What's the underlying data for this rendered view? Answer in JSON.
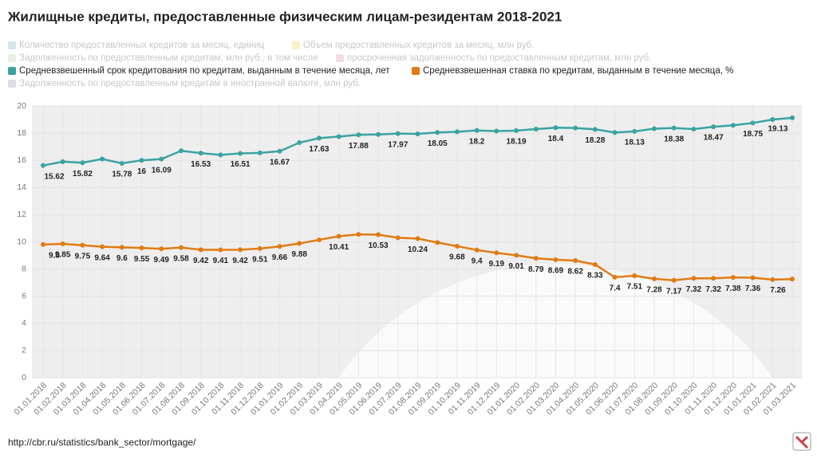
{
  "chart_data": {
    "type": "line",
    "title": "Жилищные кредиты, предоставленные физическим лицам-резидентам 2018-2021",
    "legend_hidden": [
      {
        "name": "Количество предоставленных кредитов за месяц, единиц",
        "color": "#d3e6ea"
      },
      {
        "name": "Объем предоставленных кредитов за месяц, млн руб.",
        "color": "#fbf1c9"
      },
      {
        "name": "Задолженность по предоставленным кредитам, млн руб., в том числе",
        "color": "#e7efe2"
      },
      {
        "name": "просроченная задолженность по предоставленным кредитам, млн руб.",
        "color": "#f2dde3"
      },
      {
        "name": "Задолженность по предоставленным кредитам в иностранной валюте, млн руб.",
        "color": "#dcdde6"
      }
    ],
    "x": [
      "01.01.2018",
      "01.02.2018",
      "01.03.2018",
      "01.04.2018",
      "01.05.2018",
      "01.06.2018",
      "01.07.2018",
      "01.08.2018",
      "01.09.2018",
      "01.10.2018",
      "01.11.2018",
      "01.12.2018",
      "01.01.2019",
      "01.02.2019",
      "01.03.2019",
      "01.04.2019",
      "01.05.2019",
      "01.06.2019",
      "01.07.2019",
      "01.08.2019",
      "01.09.2019",
      "01.10.2019",
      "01.11.2019",
      "01.12.2019",
      "01.01.2020",
      "01.02.2020",
      "01.03.2020",
      "01.04.2020",
      "01.05.2020",
      "01.06.2020",
      "01.07.2020",
      "01.08.2020",
      "01.09.2020",
      "01.10.2020",
      "01.11.2020",
      "01.12.2020",
      "01.01.2021",
      "01.02.2021",
      "01.03.2021"
    ],
    "series": [
      {
        "name": "Средневзвешенный срок кредитования по кредитам, выданным в течение месяца, лет",
        "color": "#3aa3a0",
        "values": [
          15.62,
          15.9,
          15.82,
          16.1,
          15.78,
          16,
          16.09,
          16.7,
          16.53,
          16.4,
          16.51,
          16.55,
          16.67,
          17.3,
          17.63,
          17.75,
          17.88,
          17.9,
          17.97,
          17.95,
          18.05,
          18.1,
          18.2,
          18.15,
          18.19,
          18.3,
          18.4,
          18.38,
          18.28,
          18.05,
          18.13,
          18.33,
          18.38,
          18.3,
          18.47,
          18.58,
          18.75,
          19.0,
          19.13
        ],
        "labeled": [
          0,
          2,
          4,
          5,
          6,
          8,
          10,
          12,
          14,
          16,
          18,
          20,
          22,
          24,
          26,
          28,
          30,
          32,
          34,
          36,
          38
        ]
      },
      {
        "name": "Средневзвешенная ставка по кредитам, выданным в течение месяца, %",
        "color": "#e07b12",
        "values": [
          9.8,
          9.85,
          9.75,
          9.64,
          9.6,
          9.55,
          9.49,
          9.58,
          9.42,
          9.41,
          9.42,
          9.51,
          9.66,
          9.88,
          10.15,
          10.41,
          10.55,
          10.53,
          10.3,
          10.24,
          9.95,
          9.68,
          9.4,
          9.19,
          9.01,
          8.79,
          8.69,
          8.62,
          8.33,
          7.4,
          7.51,
          7.28,
          7.17,
          7.32,
          7.32,
          7.38,
          7.36,
          7.22,
          7.26
        ],
        "labeled": [
          0,
          1,
          2,
          3,
          4,
          5,
          6,
          7,
          8,
          9,
          10,
          11,
          12,
          13,
          15,
          17,
          19,
          21,
          22,
          23,
          24,
          25,
          26,
          27,
          28,
          29,
          30,
          31,
          32,
          33,
          34,
          35,
          36,
          38
        ]
      }
    ],
    "ylim": [
      0,
      20
    ],
    "yticks": [
      0,
      2,
      4,
      6,
      8,
      10,
      12,
      14,
      16,
      18,
      20
    ],
    "grid": true,
    "source": "http://cbr.ru/statistics/bank_sector/mortgage/"
  }
}
